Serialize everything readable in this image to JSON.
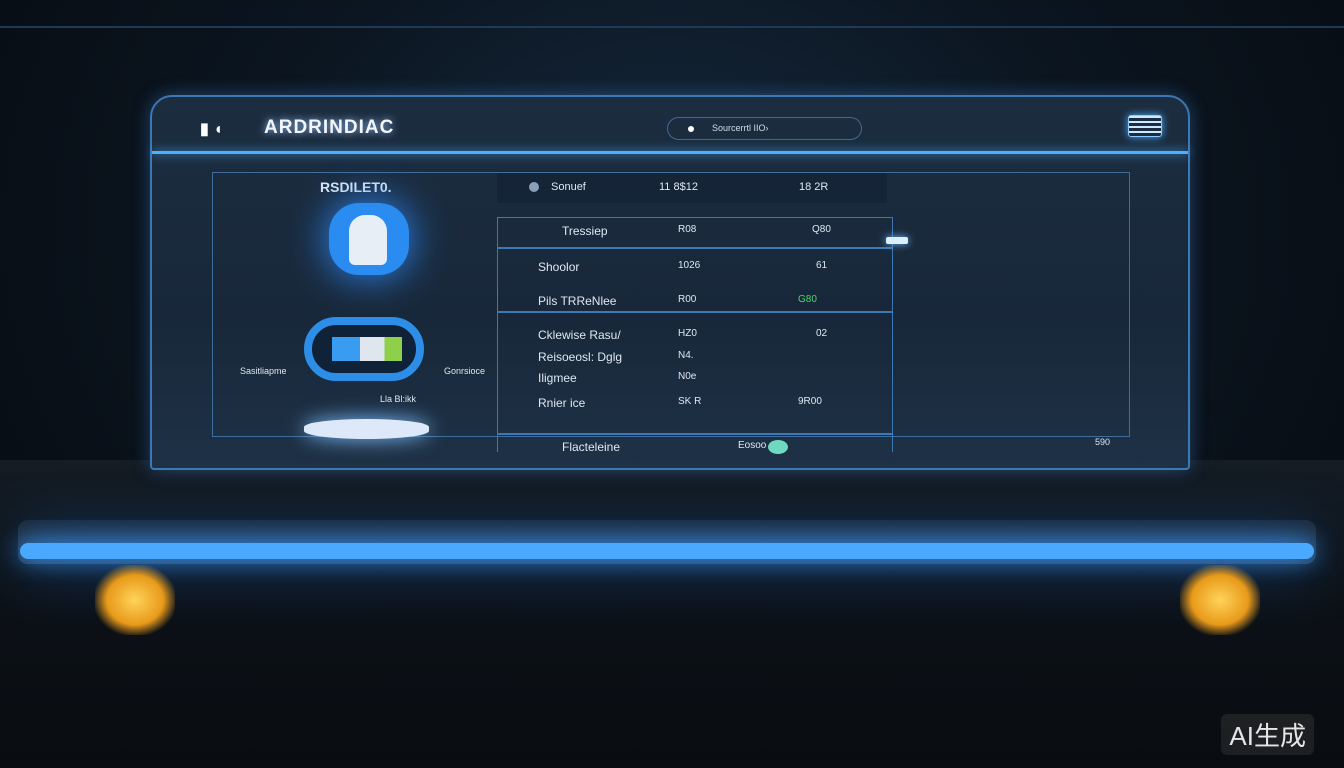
{
  "header": {
    "title": "ARDRINDIAC",
    "logo": "▮ ◖",
    "search_text": "Sourcerrtl IIO›"
  },
  "left_panel": {
    "heading": "RSDILET0.",
    "label_left": "Sasitliapme",
    "label_right": "Gonrsioce",
    "label_bottom": "Lla  Bl:ikk"
  },
  "top_row": {
    "name": "Sonuef",
    "value1": "11 8$12",
    "value2": "18 2R"
  },
  "table": {
    "header": {
      "name": "Tressiep",
      "v1": "R08",
      "v2": "Q80"
    },
    "rows": [
      {
        "name": "Shoolor",
        "v1": "1026",
        "v2": "61"
      },
      {
        "name": "Pils TRReNlee",
        "v1": "R00",
        "v2": "G80",
        "v2_color": "#4ad66b"
      },
      {
        "name": "Cklewise Rasu/",
        "v1": "HZ0",
        "v2": "02"
      },
      {
        "name": "Reisoeosl: Dglg",
        "v1": "N4.",
        "v2": ""
      },
      {
        "name": "Iligmee",
        "v1": "N0e",
        "v2": ""
      },
      {
        "name": "Rnier ice",
        "v1": "SK R",
        "v2": "9R00"
      }
    ],
    "footer": {
      "name": "Flacteleine",
      "v1": "Eosoo"
    }
  },
  "corner_text": "590",
  "watermark": "AI生成"
}
